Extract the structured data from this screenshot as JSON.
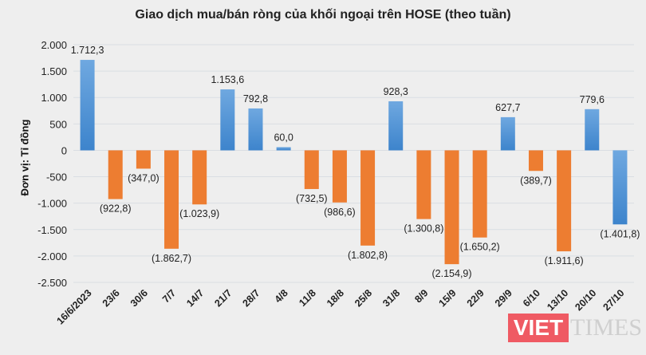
{
  "chart_data": {
    "type": "bar",
    "title": "Giao dịch mua/bán ròng của khối ngoại trên HOSE (theo tuần)",
    "ylabel": "Đơn vị: Tỉ đồng",
    "xlabel": "",
    "ylim": [
      -2500,
      2000
    ],
    "yticks": [
      2000,
      1500,
      1000,
      500,
      0,
      -500,
      -1000,
      -1500,
      -2000,
      -2500
    ],
    "ytick_labels": [
      "2.000",
      "1.500",
      "1.000",
      "500",
      "0",
      "-500",
      "-1.000",
      "-1.500",
      "-2.000",
      "-2.500"
    ],
    "grid": true,
    "categories": [
      "16/6/2023",
      "23/6",
      "30/6",
      "7/7",
      "14/7",
      "21/7",
      "28/7",
      "4/8",
      "11/8",
      "18/8",
      "25/8",
      "31/8",
      "8/9",
      "15/9",
      "22/9",
      "29/9",
      "6/10",
      "13/10",
      "20/10",
      "27/10"
    ],
    "values": [
      1712.3,
      -922.8,
      -347.0,
      -1862.7,
      -1023.9,
      1153.6,
      792.8,
      60.0,
      -732.5,
      -986.6,
      -1802.8,
      928.3,
      -1300.8,
      -2154.9,
      -1650.2,
      627.7,
      -389.7,
      -1911.6,
      779.6,
      -1401.8
    ],
    "data_labels": [
      "1.712,3",
      "(922,8)",
      "(347,0)",
      "(1.862,7)",
      "(1.023,9)",
      "1.153,6",
      "792,8",
      "60,0",
      "(732,5)",
      "(986,6)",
      "(1.802,8)",
      "928,3",
      "(1.300,8)",
      "(2.154,9)",
      "(1.650,2)",
      "627,7",
      "(389,7)",
      "(1.911,6)",
      "779,6",
      "(1.401,8)"
    ],
    "bar_colors": [
      "blue",
      "orange",
      "orange",
      "orange",
      "orange",
      "blue",
      "blue",
      "blue",
      "orange",
      "orange",
      "orange",
      "blue",
      "orange",
      "orange",
      "orange",
      "blue",
      "orange",
      "orange",
      "blue",
      "blue"
    ],
    "colors": {
      "blue": "#4a8fd6",
      "orange": "#ed7d31",
      "grid": "#d9dde3"
    }
  },
  "watermark": {
    "part1": "VIET",
    "part2": "TIMES"
  }
}
